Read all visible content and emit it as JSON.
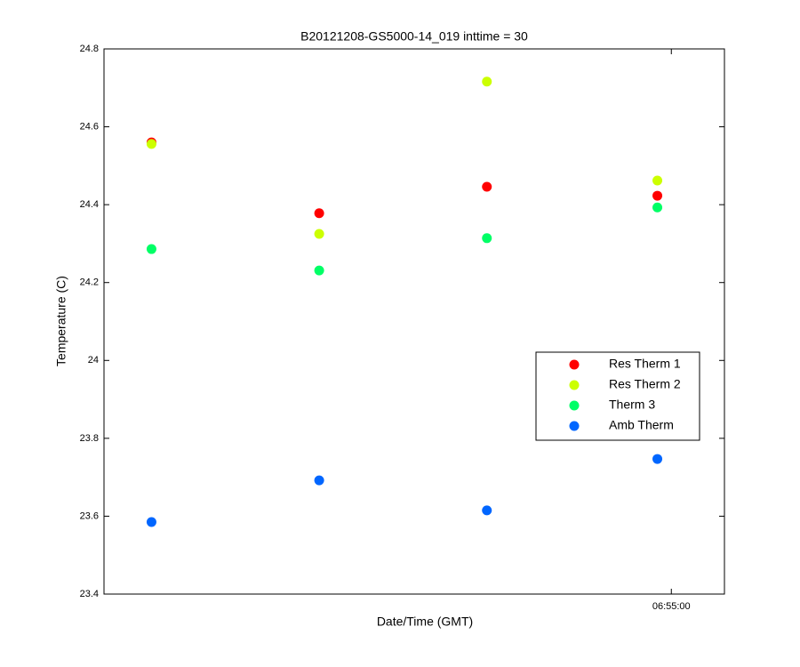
{
  "chart_data": {
    "type": "scatter",
    "title": "B20121208-GS5000-14_019 inttime = 30",
    "x_label": "Date/Time (GMT)",
    "y_label": "Temperature (C)",
    "x": [
      24714,
      24774,
      24834,
      24895
    ],
    "xlim": [
      24697,
      24919
    ],
    "xticks": [
      {
        "value": 24900,
        "label": "06:55:00"
      }
    ],
    "ylim": [
      23.4,
      24.8
    ],
    "yticks": [
      23.4,
      23.6,
      23.8,
      24,
      24.2,
      24.4,
      24.6,
      24.8
    ],
    "legend_position": "right",
    "series": [
      {
        "name": "Res Therm 1",
        "color": "#ff0000",
        "values": [
          24.56,
          24.378,
          24.446,
          24.423
        ]
      },
      {
        "name": "Res Therm 2",
        "color": "#ccff00",
        "values": [
          24.556,
          24.325,
          24.716,
          24.462
        ]
      },
      {
        "name": "Therm 3",
        "color": "#00ff66",
        "values": [
          24.286,
          24.231,
          24.314,
          24.393
        ]
      },
      {
        "name": "Amb Therm",
        "color": "#0066ff",
        "values": [
          23.585,
          23.692,
          23.615,
          23.747
        ]
      }
    ]
  }
}
